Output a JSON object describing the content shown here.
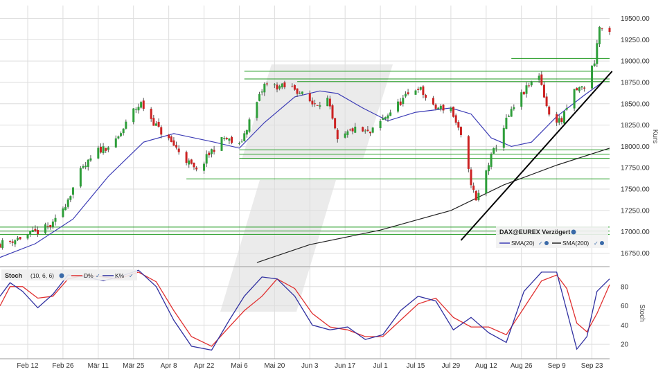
{
  "chart_data": [
    {
      "type": "candlestick",
      "instrument": "DAX@EUREX Verzögert",
      "ylabel": "Kurs",
      "ylim": [
        16600,
        19650
      ],
      "yticks": [
        16750,
        17000,
        17250,
        17500,
        17750,
        18000,
        18250,
        18500,
        18750,
        19000,
        19250,
        19500
      ],
      "ytick_labels": [
        "16750.00",
        "17000.00",
        "17250.00",
        "17500.00",
        "17750.00",
        "18000.00",
        "18250.00",
        "18500.00",
        "18750.00",
        "19000.00",
        "19250.00",
        "19500.00"
      ],
      "x_start": "2024-02-01",
      "x_end": "2024-09-30",
      "xticks": [
        "2024-02-12",
        "2024-02-26",
        "2024-03-11",
        "2024-03-25",
        "2024-04-08",
        "2024-04-22",
        "2024-05-06",
        "2024-05-20",
        "2024-06-03",
        "2024-06-17",
        "2024-07-01",
        "2024-07-15",
        "2024-07-29",
        "2024-08-12",
        "2024-08-26",
        "2024-09-09",
        "2024-09-23"
      ],
      "xtick_labels": [
        "Feb 12",
        "Feb 26",
        "Mär 11",
        "Mär 25",
        "Apr 8",
        "Apr 22",
        "Mai 6",
        "Mai 20",
        "Jun 3",
        "Jun 17",
        "Jul 1",
        "Jul 15",
        "Jul 29",
        "Aug 12",
        "Aug 26",
        "Sep 9",
        "Sep 23"
      ],
      "legend": [
        {
          "name": "SMA(20)",
          "color": "#3b3bb5"
        },
        {
          "name": "SMA(200)",
          "color": "#222222"
        }
      ],
      "legend_placement": "bottom-right",
      "colors": {
        "up": "#2e9e3a",
        "down": "#cc2222",
        "grid": "#dddddd",
        "support": "#1f9a1f",
        "trendline": "#000000"
      },
      "close_path": [
        [
          "2024-02-01",
          16860
        ],
        [
          "2024-02-08",
          16920
        ],
        [
          "2024-02-15",
          16990
        ],
        [
          "2024-02-22",
          17080
        ],
        [
          "2024-02-27",
          17330
        ],
        [
          "2024-03-04",
          17700
        ],
        [
          "2024-03-11",
          17950
        ],
        [
          "2024-03-18",
          18050
        ],
        [
          "2024-03-25",
          18420
        ],
        [
          "2024-03-28",
          18500
        ],
        [
          "2024-04-04",
          18200
        ],
        [
          "2024-04-11",
          17980
        ],
        [
          "2024-04-19",
          17700
        ],
        [
          "2024-04-25",
          17950
        ],
        [
          "2024-04-30",
          18100
        ],
        [
          "2024-05-06",
          18000
        ],
        [
          "2024-05-10",
          18300
        ],
        [
          "2024-05-16",
          18720
        ],
        [
          "2024-05-22",
          18700
        ],
        [
          "2024-05-28",
          18680
        ],
        [
          "2024-06-04",
          18500
        ],
        [
          "2024-06-10",
          18550
        ],
        [
          "2024-06-14",
          18050
        ],
        [
          "2024-06-20",
          18200
        ],
        [
          "2024-06-27",
          18150
        ],
        [
          "2024-07-03",
          18350
        ],
        [
          "2024-07-10",
          18550
        ],
        [
          "2024-07-16",
          18700
        ],
        [
          "2024-07-22",
          18450
        ],
        [
          "2024-07-29",
          18450
        ],
        [
          "2024-08-02",
          18100
        ],
        [
          "2024-08-05",
          17700
        ],
        [
          "2024-08-08",
          17350
        ],
        [
          "2024-08-13",
          17800
        ],
        [
          "2024-08-20",
          18300
        ],
        [
          "2024-08-26",
          18600
        ],
        [
          "2024-09-02",
          18850
        ],
        [
          "2024-09-06",
          18350
        ],
        [
          "2024-09-11",
          18300
        ],
        [
          "2024-09-16",
          18650
        ],
        [
          "2024-09-20",
          18700
        ],
        [
          "2024-09-24",
          19000
        ],
        [
          "2024-09-26",
          19400
        ],
        [
          "2024-09-30",
          19300
        ]
      ],
      "sma20": [
        [
          "2024-02-01",
          16700
        ],
        [
          "2024-02-15",
          16860
        ],
        [
          "2024-03-01",
          17150
        ],
        [
          "2024-03-15",
          17650
        ],
        [
          "2024-03-29",
          18050
        ],
        [
          "2024-04-10",
          18150
        ],
        [
          "2024-04-26",
          18050
        ],
        [
          "2024-05-06",
          17980
        ],
        [
          "2024-05-16",
          18280
        ],
        [
          "2024-05-28",
          18580
        ],
        [
          "2024-06-07",
          18650
        ],
        [
          "2024-06-14",
          18620
        ],
        [
          "2024-06-24",
          18450
        ],
        [
          "2024-07-04",
          18300
        ],
        [
          "2024-07-15",
          18400
        ],
        [
          "2024-07-29",
          18450
        ],
        [
          "2024-08-06",
          18380
        ],
        [
          "2024-08-14",
          18100
        ],
        [
          "2024-08-22",
          18000
        ],
        [
          "2024-08-30",
          18050
        ],
        [
          "2024-09-09",
          18350
        ],
        [
          "2024-09-20",
          18600
        ],
        [
          "2024-09-27",
          18750
        ]
      ],
      "sma200": [
        [
          "2024-05-13",
          16640
        ],
        [
          "2024-06-03",
          16850
        ],
        [
          "2024-07-01",
          17020
        ],
        [
          "2024-07-29",
          17250
        ],
        [
          "2024-08-19",
          17550
        ],
        [
          "2024-09-09",
          17780
        ],
        [
          "2024-09-30",
          17980
        ]
      ],
      "horizontal_levels": [
        {
          "y": 19030,
          "from": "2024-08-22",
          "to": "2024-09-30"
        },
        {
          "y": 18880,
          "from": "2024-05-08",
          "to": "2024-09-30"
        },
        {
          "y": 18790,
          "from": "2024-05-08",
          "to": "2024-09-30"
        },
        {
          "y": 18760,
          "from": "2024-05-29",
          "to": "2024-09-30"
        },
        {
          "y": 17960,
          "from": "2024-05-06",
          "to": "2024-09-30"
        },
        {
          "y": 17910,
          "from": "2024-05-06",
          "to": "2024-09-30"
        },
        {
          "y": 17860,
          "from": "2024-05-06",
          "to": "2024-09-30"
        },
        {
          "y": 17620,
          "from": "2024-04-15",
          "to": "2024-09-30"
        },
        {
          "y": 17055,
          "from": "2024-02-01",
          "to": "2024-09-30"
        },
        {
          "y": 17010,
          "from": "2024-02-01",
          "to": "2024-09-30"
        },
        {
          "y": 16970,
          "from": "2024-02-01",
          "to": "2024-09-30"
        }
      ],
      "trendline": {
        "from": [
          "2024-08-02",
          16900
        ],
        "to": [
          "2024-10-01",
          18880
        ]
      }
    },
    {
      "type": "line",
      "title": "Stoch",
      "params": "(10, 6, 6)",
      "ylabel": "Stoch",
      "ylim": [
        5,
        100
      ],
      "yticks": [
        20,
        40,
        60,
        80
      ],
      "ytick_labels": [
        "20",
        "40",
        "60",
        "80"
      ],
      "series": [
        {
          "name": "D%",
          "color": "#e03030",
          "values": [
            [
              "2024-02-01",
              60
            ],
            [
              "2024-02-05",
              80
            ],
            [
              "2024-02-10",
              80
            ],
            [
              "2024-02-16",
              68
            ],
            [
              "2024-02-22",
              70
            ],
            [
              "2024-02-28",
              88
            ],
            [
              "2024-03-06",
              92
            ],
            [
              "2024-03-13",
              90
            ],
            [
              "2024-03-19",
              88
            ],
            [
              "2024-03-27",
              95
            ],
            [
              "2024-04-03",
              85
            ],
            [
              "2024-04-10",
              55
            ],
            [
              "2024-04-17",
              28
            ],
            [
              "2024-04-25",
              18
            ],
            [
              "2024-05-02",
              38
            ],
            [
              "2024-05-08",
              55
            ],
            [
              "2024-05-15",
              70
            ],
            [
              "2024-05-21",
              88
            ],
            [
              "2024-05-28",
              78
            ],
            [
              "2024-06-04",
              52
            ],
            [
              "2024-06-11",
              38
            ],
            [
              "2024-06-18",
              35
            ],
            [
              "2024-06-25",
              28
            ],
            [
              "2024-07-02",
              28
            ],
            [
              "2024-07-09",
              45
            ],
            [
              "2024-07-16",
              62
            ],
            [
              "2024-07-23",
              68
            ],
            [
              "2024-07-30",
              48
            ],
            [
              "2024-08-06",
              38
            ],
            [
              "2024-08-13",
              38
            ],
            [
              "2024-08-20",
              30
            ],
            [
              "2024-08-27",
              58
            ],
            [
              "2024-09-03",
              86
            ],
            [
              "2024-09-09",
              92
            ],
            [
              "2024-09-13",
              78
            ],
            [
              "2024-09-17",
              42
            ],
            [
              "2024-09-21",
              33
            ],
            [
              "2024-09-25",
              52
            ],
            [
              "2024-09-30",
              82
            ]
          ]
        },
        {
          "name": "K%",
          "color": "#3030a0",
          "values": [
            [
              "2024-02-01",
              70
            ],
            [
              "2024-02-05",
              84
            ],
            [
              "2024-02-10",
              75
            ],
            [
              "2024-02-16",
              58
            ],
            [
              "2024-02-22",
              72
            ],
            [
              "2024-02-28",
              92
            ],
            [
              "2024-03-06",
              90
            ],
            [
              "2024-03-13",
              86
            ],
            [
              "2024-03-19",
              90
            ],
            [
              "2024-03-27",
              97
            ],
            [
              "2024-04-03",
              80
            ],
            [
              "2024-04-10",
              45
            ],
            [
              "2024-04-17",
              18
            ],
            [
              "2024-04-25",
              14
            ],
            [
              "2024-05-02",
              45
            ],
            [
              "2024-05-08",
              70
            ],
            [
              "2024-05-15",
              90
            ],
            [
              "2024-05-21",
              88
            ],
            [
              "2024-05-28",
              70
            ],
            [
              "2024-06-04",
              40
            ],
            [
              "2024-06-11",
              35
            ],
            [
              "2024-06-18",
              38
            ],
            [
              "2024-06-25",
              25
            ],
            [
              "2024-07-02",
              30
            ],
            [
              "2024-07-09",
              55
            ],
            [
              "2024-07-16",
              70
            ],
            [
              "2024-07-23",
              65
            ],
            [
              "2024-07-30",
              35
            ],
            [
              "2024-08-06",
              48
            ],
            [
              "2024-08-13",
              32
            ],
            [
              "2024-08-20",
              22
            ],
            [
              "2024-08-27",
              75
            ],
            [
              "2024-09-03",
              95
            ],
            [
              "2024-09-09",
              95
            ],
            [
              "2024-09-13",
              55
            ],
            [
              "2024-09-17",
              15
            ],
            [
              "2024-09-21",
              28
            ],
            [
              "2024-09-25",
              75
            ],
            [
              "2024-09-30",
              88
            ]
          ]
        }
      ]
    }
  ]
}
